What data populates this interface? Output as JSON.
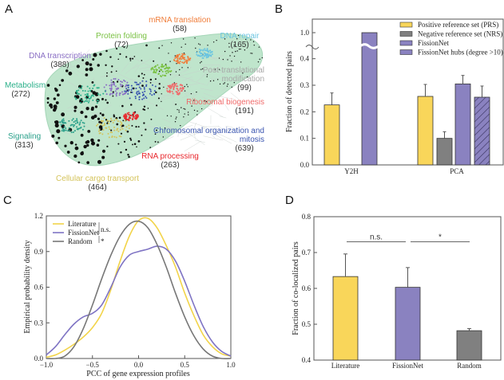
{
  "panels": {
    "a": "A",
    "b": "B",
    "c": "C",
    "d": "D"
  },
  "network": {
    "hull_color": "#bfe5cc",
    "clusters": [
      {
        "label": "mRNA translation",
        "count": "(58)",
        "color": "#f07d3a"
      },
      {
        "label": "Protein folding",
        "count": "(72)",
        "color": "#7ac143"
      },
      {
        "label": "DNA repair",
        "count": "(165)",
        "color": "#6cc5e0"
      },
      {
        "label": "DNA transcription",
        "count": "(388)",
        "color": "#8a6fc4"
      },
      {
        "label": "Post-translational",
        "label2": "modification",
        "count": "(99)",
        "color": "#a8a8a8"
      },
      {
        "label": "Metabolism",
        "count": "(272)",
        "color": "#2bb08a"
      },
      {
        "label": "Ribosomal biogenesis",
        "count": "(191)",
        "color": "#f06a6a"
      },
      {
        "label": "Signaling",
        "count": "(313)",
        "color": "#2aa08a"
      },
      {
        "label": "Chromosomal organization and",
        "label2": "mitosis",
        "count": "(639)",
        "color": "#3a55b0"
      },
      {
        "label": "RNA processing",
        "count": "(263)",
        "color": "#e8272c"
      },
      {
        "label": "Cellular cargo transport",
        "count": "(464)",
        "color": "#d4c35a"
      }
    ]
  },
  "chart_data": [
    {
      "panel": "B",
      "type": "bar",
      "ylabel": "Fraction of detected pairs",
      "categories": [
        "Y2H",
        "PCA"
      ],
      "yticks": [
        "0.0",
        "0.1",
        "0.2",
        "0.3",
        "0.4",
        "1.0"
      ],
      "ylim": [
        0,
        0.45
      ],
      "axis_break": [
        0.45,
        1.0
      ],
      "series": [
        {
          "name": "Positive reference set (PRS)",
          "color": "#f9d65a",
          "values": [
            0.226,
            0.258
          ],
          "errors": [
            0.045,
            0.045
          ]
        },
        {
          "name": "Negative reference set (NRS)",
          "color": "#808080",
          "values": [
            null,
            0.1
          ],
          "errors": [
            null,
            0.025
          ]
        },
        {
          "name": "FissionNet",
          "color": "#8a82c0",
          "values": [
            1.0,
            0.305
          ],
          "errors": [
            null,
            0.032
          ]
        },
        {
          "name": "FissionNet hubs (degree >10)",
          "color": "#8a82c0",
          "hatched": true,
          "values": [
            null,
            0.255
          ],
          "errors": [
            null,
            0.042
          ]
        }
      ],
      "legend": "top-right"
    },
    {
      "panel": "C",
      "type": "line",
      "xlabel": "PCC of gene expression profiles",
      "ylabel": "Empirical probability density",
      "xlim": [
        -1,
        1
      ],
      "ylim": [
        0,
        1.2
      ],
      "xticks": [
        "−1.0",
        "−0.5",
        "0.0",
        "0.5",
        "1.0"
      ],
      "yticks": [
        "0.0",
        "0.3",
        "0.6",
        "0.9",
        "1.2"
      ],
      "x": [
        -1,
        -0.9,
        -0.8,
        -0.7,
        -0.6,
        -0.5,
        -0.4,
        -0.3,
        -0.2,
        -0.1,
        0,
        0.1,
        0.2,
        0.3,
        0.4,
        0.5,
        0.6,
        0.7,
        0.8,
        0.9,
        1
      ],
      "series": [
        {
          "name": "Literature",
          "color": "#f2d44a",
          "values": [
            0.01,
            0.03,
            0.07,
            0.12,
            0.18,
            0.26,
            0.38,
            0.58,
            0.82,
            1.03,
            1.16,
            1.18,
            1.1,
            0.95,
            0.77,
            0.55,
            0.36,
            0.2,
            0.1,
            0.04,
            0.02
          ]
        },
        {
          "name": "FissionNet",
          "color": "#7f74c4",
          "values": [
            0.03,
            0.1,
            0.2,
            0.29,
            0.35,
            0.38,
            0.45,
            0.6,
            0.77,
            0.87,
            0.9,
            0.92,
            0.945,
            0.92,
            0.82,
            0.65,
            0.45,
            0.27,
            0.14,
            0.06,
            0.02
          ]
        },
        {
          "name": "Random",
          "color": "#777777",
          "values": [
            0,
            0,
            0.02,
            0.1,
            0.25,
            0.45,
            0.67,
            0.87,
            1.03,
            1.13,
            1.155,
            1.1,
            0.96,
            0.77,
            0.55,
            0.35,
            0.19,
            0.08,
            0.02,
            0,
            0
          ]
        }
      ],
      "annotations": [
        "n.s.",
        "*"
      ],
      "legend": "top-left"
    },
    {
      "panel": "D",
      "type": "bar",
      "ylabel": "Fraction of co-localized pairs",
      "categories": [
        "Literature",
        "FissionNet",
        "Random"
      ],
      "values": [
        0.633,
        0.603,
        0.482
      ],
      "errors": [
        0.063,
        0.055,
        0.006
      ],
      "colors": [
        "#f9d65a",
        "#8a82c0",
        "#808080"
      ],
      "ylim": [
        0.4,
        0.8
      ],
      "yticks": [
        "0.4",
        "0.5",
        "0.6",
        "0.7",
        "0.8"
      ],
      "significance": [
        {
          "pair": [
            "Literature",
            "FissionNet"
          ],
          "label": "n.s."
        },
        {
          "pair": [
            "FissionNet",
            "Random"
          ],
          "label": "*"
        }
      ]
    }
  ]
}
